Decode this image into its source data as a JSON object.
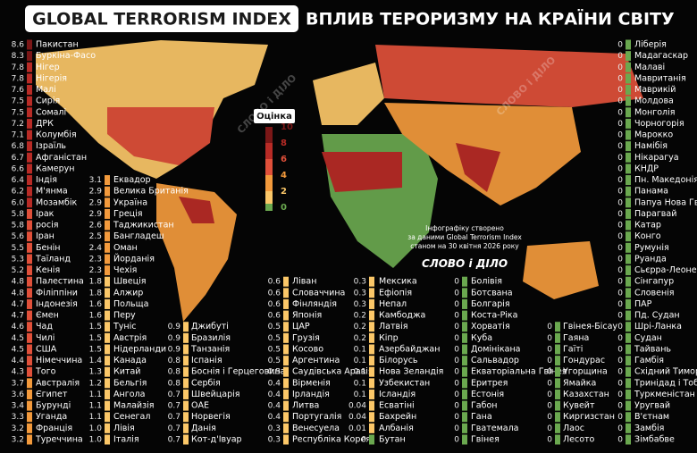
{
  "header": {
    "title": "GLOBAL TERRORISM INDEX",
    "subtitle": "ВПЛИВ ТЕРОРИЗМУ НА КРАЇНИ СВІТУ"
  },
  "legend": {
    "title": "Оцінка",
    "ticks": [
      10,
      8,
      6,
      4,
      2,
      0
    ],
    "colors": [
      "#7b1717",
      "#b82b26",
      "#e0503a",
      "#f39a3c",
      "#fbc768",
      "#6aa84f"
    ]
  },
  "note": [
    "Інфографіку створено",
    "за даними Global Terrorism Index",
    "станом на 30 квітня 2026 року"
  ],
  "logo": "СЛОВО і ДІЛО",
  "columns": [
    {
      "countries": [
        "Пакистан",
        "Буркіна-Фасо",
        "Нігер",
        "Нігерія",
        "Малі",
        "Сирія",
        "Сомалі",
        "ДРК",
        "Колумбія",
        "Ізраїль",
        "Афганістан",
        "Камерун",
        "Індія",
        "М'янма",
        "Мозамбік",
        "Ірак",
        "росія",
        "Іран",
        "Бенін",
        "Таїланд",
        "Кенія",
        "Палестина",
        "Філіппіни",
        "Індонезія",
        "Ємен",
        "Чад",
        "Чилі",
        "США",
        "Німеччина",
        "Того",
        "Австралія",
        "Єгипет",
        "Бурунді",
        "Уганда",
        "Франція",
        "Туреччина"
      ],
      "scores": [
        8.6,
        8.3,
        7.8,
        7.8,
        7.6,
        7.5,
        7.5,
        7.2,
        7.1,
        6.8,
        6.7,
        6.6,
        6.4,
        6.2,
        6.0,
        5.8,
        5.8,
        5.6,
        5.5,
        5.3,
        5.2,
        4.8,
        4.8,
        4.7,
        4.7,
        4.6,
        4.5,
        4.5,
        4.4,
        4.3,
        3.7,
        3.6,
        3.4,
        3.3,
        3.2,
        3.2
      ],
      "score_labels": [
        "8.6",
        "8.3",
        "7.8",
        "7.8",
        "7.6",
        "7.5",
        "7.5",
        "7.2",
        "7.1",
        "6.8",
        "6.7",
        "6.6",
        "6.4",
        "6.2",
        "6.0",
        "5.8",
        "5.8",
        "5.6",
        "5.5",
        "5.3",
        "5.2",
        "4.8",
        "4.8",
        "4.7",
        "4.7",
        "4.6",
        "4.5",
        "4.5",
        "4.4",
        "4.3",
        "3.7",
        "3.6",
        "3.4",
        "3.3",
        "3.2",
        "3.2"
      ]
    },
    {
      "countries": [
        "Еквадор",
        "Велика Британія",
        "Україна",
        "Греція",
        "Таджикистан",
        "Бангладеш",
        "Оман",
        "Йорданія",
        "Чехія",
        "Швеція",
        "Алжир",
        "Польща",
        "Перу",
        "Туніс",
        "Австрія",
        "Нідерланди",
        "Канада",
        "Китай",
        "Бельгія",
        "Ангола",
        "Малайзія",
        "Сенегал",
        "Лівія",
        "Італія"
      ],
      "scores": [
        3.1,
        2.9,
        2.9,
        2.9,
        2.6,
        2.5,
        2.4,
        2.3,
        2.3,
        1.8,
        1.8,
        1.6,
        1.6,
        1.5,
        1.5,
        1.5,
        1.4,
        1.3,
        1.2,
        1.1,
        1.1,
        1.1,
        1.0,
        1.0
      ],
      "score_labels": [
        "3.1",
        "2.9",
        "2.9",
        "2.9",
        "2.6",
        "2.5",
        "2.4",
        "2.3",
        "2.3",
        "1.8",
        "1.8",
        "1.6",
        "1.6",
        "1.5",
        "1.5",
        "1.5",
        "1.4",
        "1.3",
        "1.2",
        "1.1",
        "1.1",
        "1.1",
        "1.0",
        "1.0"
      ]
    },
    {
      "countries": [
        "Джибуті",
        "Бразилія",
        "Танзанія",
        "Іспанія",
        "Боснія і Герцеговина",
        "Сербія",
        "Швейцарія",
        "ОАЕ",
        "Норвегія",
        "Данія",
        "Кот-д'Івуар"
      ],
      "scores": [
        0.9,
        0.9,
        0.9,
        0.8,
        0.8,
        0.8,
        0.7,
        0.7,
        0.7,
        0.7,
        0.7
      ]
    },
    {
      "countries": [
        "Ліван",
        "Словаччина",
        "Фінляндія",
        "Японія",
        "ЦАР",
        "Грузія",
        "Косово",
        "Аргентина",
        "Саудівська Аравія",
        "Вірменія",
        "Ірландія",
        "Литва",
        "Португалія",
        "Венесуела",
        "Республіка Корея"
      ],
      "scores": [
        0.6,
        0.6,
        0.6,
        0.6,
        0.5,
        0.5,
        0.5,
        0.5,
        0.5,
        0.4,
        0.4,
        0.4,
        0.4,
        0.3,
        0.3
      ]
    },
    {
      "countries": [
        "Мексика",
        "Ефіопія",
        "Непал",
        "Камбоджа",
        "Латвія",
        "Кіпр",
        "Азербайджан",
        "Білорусь",
        "Нова Зеландія",
        "Узбекистан",
        "Ісландія",
        "Есватіні",
        "Бахрейн",
        "Албанія",
        "Бутан"
      ],
      "scores": [
        0.3,
        0.3,
        0.3,
        0.2,
        0.2,
        0.2,
        0.1,
        0.1,
        0.1,
        0.1,
        0.1,
        0.04,
        0.04,
        0.01,
        0
      ]
    },
    {
      "countries": [
        "Болівія",
        "Ботсвана",
        "Болгарія",
        "Коста-Ріка",
        "Хорватія",
        "Куба",
        "Домінікана",
        "Сальвадор",
        "Екваторіальна Гвінея",
        "Еритрея",
        "Естонія",
        "Габон",
        "Гана",
        "Гватемала",
        "Гвінея"
      ],
      "scores": [
        0,
        0,
        0,
        0,
        0,
        0,
        0,
        0,
        0,
        0,
        0,
        0,
        0,
        0,
        0
      ]
    },
    {
      "countries": [
        "Гвінея-Бісау",
        "Гаяна",
        "Гаїті",
        "Гондурас",
        "Угорщина",
        "Ямайка",
        "Казахстан",
        "Кувейт",
        "Киргизстан",
        "Лаос",
        "Лесото"
      ],
      "scores": [
        0,
        0,
        0,
        0,
        0,
        0,
        0,
        0,
        0,
        0,
        0
      ]
    },
    {
      "countries": [
        "Ліберія",
        "Мадагаскар",
        "Малаві",
        "Мавританія",
        "Маврикій",
        "Молдова",
        "Монголія",
        "Чорногорія",
        "Марокко",
        "Намібія",
        "Нікарагуа",
        "КНДР",
        "Пн. Македонія",
        "Панама",
        "Папуа Нова Гвінея",
        "Парагвай",
        "Катар",
        "Конго",
        "Румунія",
        "Руанда",
        "Сьєрра-Леоне",
        "Сінгапур",
        "Словенія",
        "ПАР",
        "Пд. Судан",
        "Шрі-Ланка",
        "Судан",
        "Тайвань",
        "Гамбія",
        "Східний Тимор",
        "Тринідад і Тобаго",
        "Туркменістан",
        "Уругвай",
        "В'єтнам",
        "Замбія",
        "Зімбабве"
      ],
      "scores": [
        0,
        0,
        0,
        0,
        0,
        0,
        0,
        0,
        0,
        0,
        0,
        0,
        0,
        0,
        0,
        0,
        0,
        0,
        0,
        0,
        0,
        0,
        0,
        0,
        0,
        0,
        0,
        0,
        0,
        0,
        0,
        0,
        0,
        0,
        0,
        0
      ]
    }
  ]
}
